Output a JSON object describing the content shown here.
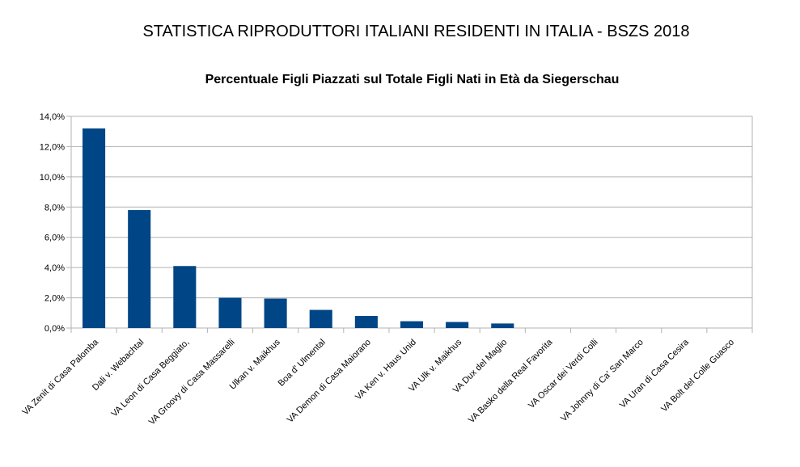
{
  "chart_data": {
    "type": "bar",
    "title": "STATISTICA RIPRODUTTORI ITALIANI RESIDENTI IN ITALIA - BSZS 2018",
    "subtitle": "Percentuale Figli Piazzati sul Totale Figli Nati in Età da Siegerschau",
    "xlabel": "",
    "ylabel": "",
    "ylim": [
      0,
      14
    ],
    "yticks": [
      "0,0%",
      "2,0%",
      "4,0%",
      "6,0%",
      "8,0%",
      "10,0%",
      "12,0%",
      "14,0%"
    ],
    "grid": true,
    "categories": [
      "VA Zenit di Casa Palomba",
      "Dali v. Webachtal",
      "VA Leon di Casa Beggiato,",
      "VA Groovy di Casa Massarelli",
      "Ulkan v. Maikhus",
      "Boa d' Ulmental",
      "VA Demon di Casa Maiorano",
      "VA Ken v. Haus Unid",
      "VA Ulk v. Maikhus",
      "VA Dux del Maglio",
      "VA Basko della Real Favorita",
      "VA Oscar dei Verdi Colli",
      "VA Johnny di Ca' San Marco",
      "VA Uran di Casa Cesira",
      "VA Bolt del Colle Guasco"
    ],
    "values": [
      13.2,
      7.8,
      4.1,
      2.0,
      1.95,
      1.2,
      0.8,
      0.45,
      0.4,
      0.3,
      0,
      0,
      0,
      0,
      0
    ],
    "bar_color": "#004586"
  }
}
